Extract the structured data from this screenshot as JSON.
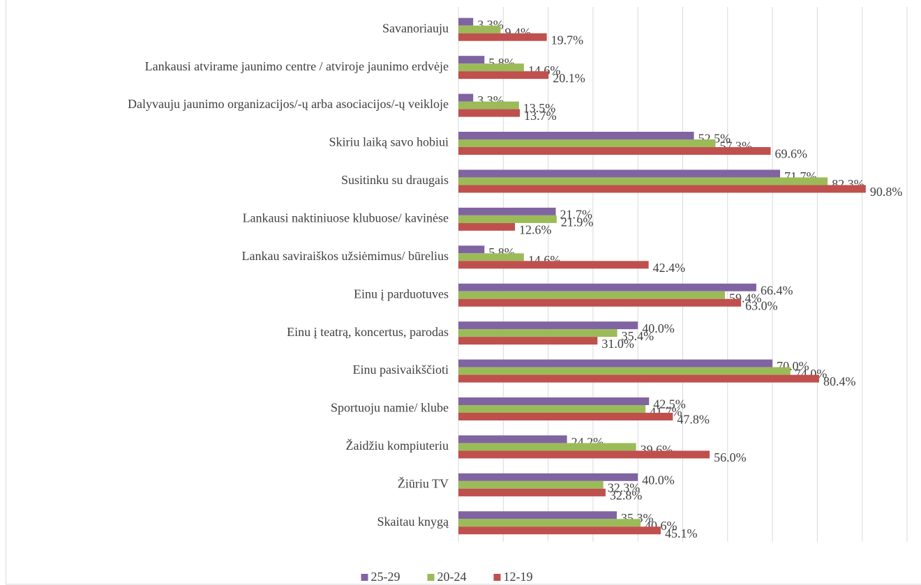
{
  "chart_data": {
    "type": "bar",
    "orientation": "horizontal",
    "categories": [
      "Savanoriauju",
      "Lankausi atvirame jaunimo centre / atviroje jaunimo erdvėje",
      "Dalyvauju jaunimo organizacijos/-ų arba asociacijos/-ų veikloje",
      "Skiriu laiką savo hobiui",
      "Susitinku su draugais",
      "Lankausi naktiniuose klubuose/ kavinėse",
      "Lankau saviraiškos užsiėmimus/ būrelius",
      "Einu į parduotuves",
      "Einu į teatrą, koncertus, parodas",
      "Einu pasivaikščioti",
      "Sportuoju namie/ klube",
      "Žaidžiu kompiuteriu",
      "Žiūriu TV",
      "Skaitau knygą"
    ],
    "series": [
      {
        "name": "25-29",
        "color": "#8064a2",
        "values": [
          3.3,
          5.8,
          3.3,
          52.5,
          71.7,
          21.7,
          5.8,
          66.4,
          40.0,
          70.0,
          42.5,
          24.2,
          40.0,
          35.3
        ],
        "value_labels": [
          "3.3%",
          "5.8%",
          "3.3%",
          "52.5%",
          "71.7%",
          "21.7%",
          "5.8%",
          "66.4%",
          "40.0%",
          "70.0%",
          "42.5%",
          "24.2%",
          "40.0%",
          "35.3%"
        ]
      },
      {
        "name": "20-24",
        "color": "#9bbb59",
        "values": [
          9.4,
          14.6,
          13.5,
          57.3,
          82.3,
          21.9,
          14.6,
          59.4,
          35.4,
          74.0,
          41.7,
          39.6,
          32.3,
          40.6
        ],
        "value_labels": [
          "9.4%",
          "14.6%",
          "13.5%",
          "57.3%",
          "82.3%",
          "21.9%",
          "14.6%",
          "59.4%",
          "35.4%",
          "74.0%",
          "41.7%",
          "39.6%",
          "32.3%",
          "40.6%"
        ]
      },
      {
        "name": "12-19",
        "color": "#c0504d",
        "values": [
          19.7,
          20.1,
          13.7,
          69.6,
          90.8,
          12.6,
          42.4,
          63.0,
          31.0,
          80.4,
          47.8,
          56.0,
          32.8,
          45.1
        ],
        "value_labels": [
          "19.7%",
          "20.1%",
          "13.7%",
          "69.6%",
          "90.8%",
          "12.6%",
          "42.4%",
          "63.0%",
          "31.0%",
          "80.4%",
          "47.8%",
          "56.0%",
          "32.8%",
          "45.1%"
        ]
      }
    ],
    "xlim": [
      0,
      100
    ],
    "xticks": [
      0,
      10,
      20,
      30,
      40,
      50,
      60,
      70,
      80,
      90,
      100
    ],
    "grid": true,
    "legend": "bottom"
  }
}
